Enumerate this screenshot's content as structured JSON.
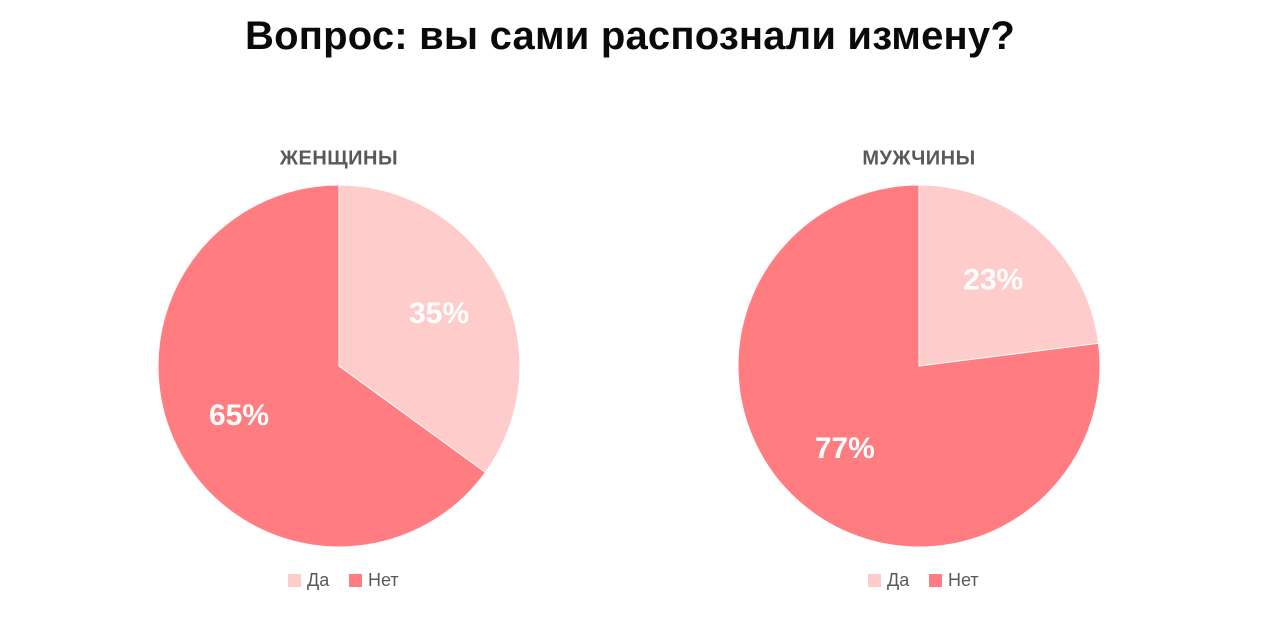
{
  "page": {
    "title": "Вопрос: вы сами распознали измену?"
  },
  "colors": {
    "yes": "#ffcccc",
    "no": "#ff7c80",
    "label": "#ffffff",
    "chart_title": "#595959",
    "legend_text": "#595959"
  },
  "chart_data": [
    {
      "type": "pie",
      "title": "ЖЕНЩИНЫ",
      "categories": [
        "Да",
        "Нет"
      ],
      "values": [
        35,
        65
      ],
      "data_labels": [
        "35%",
        "65%"
      ],
      "legend_position": "bottom",
      "colors": [
        "#ffcccc",
        "#ff7c80"
      ]
    },
    {
      "type": "pie",
      "title": "МУЖЧИНЫ",
      "categories": [
        "Да",
        "Нет"
      ],
      "values": [
        23,
        77
      ],
      "data_labels": [
        "23%",
        "77%"
      ],
      "legend_position": "bottom",
      "colors": [
        "#ffcccc",
        "#ff7c80"
      ]
    }
  ]
}
